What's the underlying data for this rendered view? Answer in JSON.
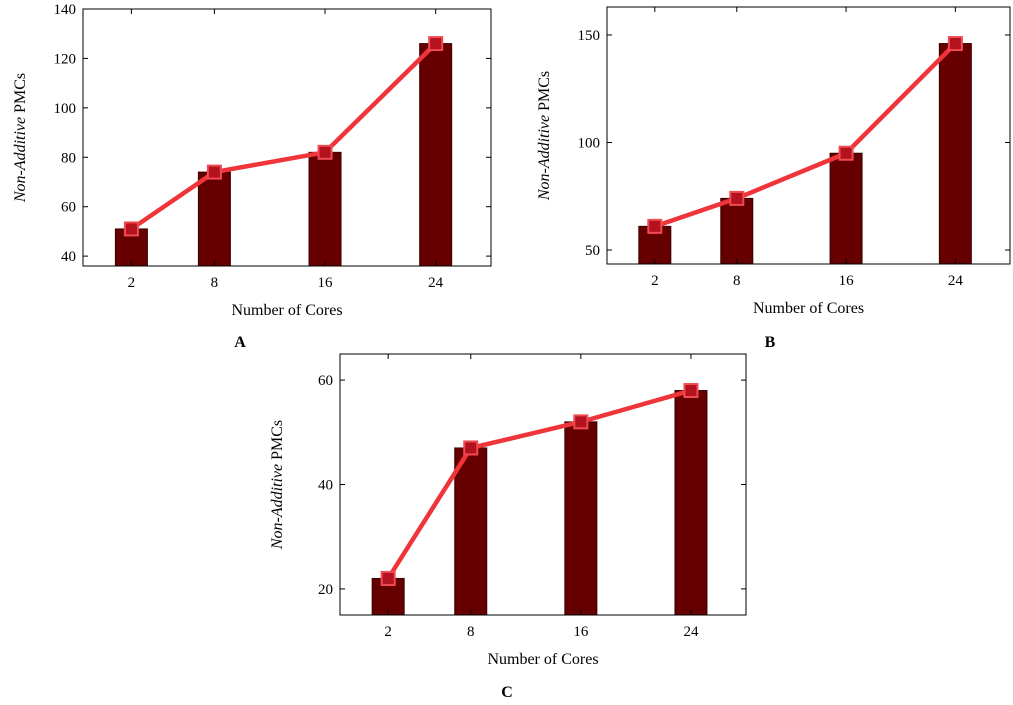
{
  "chart_data": [
    {
      "id": "A",
      "panel_label": "A",
      "type": "bar",
      "overlay": "line",
      "categories": [
        "2",
        "8",
        "16",
        "24"
      ],
      "x": [
        2,
        8,
        16,
        24
      ],
      "values": [
        51,
        74,
        82,
        126
      ],
      "xlabel": "Number of Cores",
      "ylabel_italic": "Non-Additive",
      "ylabel_rest": " PMCs",
      "ylim": [
        36,
        140
      ],
      "yticks": [
        40,
        60,
        80,
        100,
        120,
        140
      ],
      "xlim": [
        -1.5,
        28
      ]
    },
    {
      "id": "B",
      "panel_label": "B",
      "type": "bar",
      "overlay": "line",
      "categories": [
        "2",
        "8",
        "16",
        "24"
      ],
      "x": [
        2,
        8,
        16,
        24
      ],
      "values": [
        61,
        74,
        95,
        146
      ],
      "xlabel": "Number of Cores",
      "ylabel_italic": "Non-Additive",
      "ylabel_rest": " PMCs",
      "ylim": [
        43.5,
        163
      ],
      "yticks": [
        50,
        100,
        150
      ],
      "xlim": [
        -1.5,
        28
      ]
    },
    {
      "id": "C",
      "panel_label": "C",
      "type": "bar",
      "overlay": "line",
      "categories": [
        "2",
        "8",
        "16",
        "24"
      ],
      "x": [
        2,
        8,
        16,
        24
      ],
      "values": [
        22,
        47,
        52,
        58
      ],
      "xlabel": "Number of Cores",
      "ylabel_italic": "Non-Additive",
      "ylabel_rest": " PMCs",
      "ylim": [
        15,
        65
      ],
      "yticks": [
        20,
        40,
        60
      ],
      "xlim": [
        -1.5,
        28
      ]
    }
  ],
  "colors": {
    "bar_fill": "#660000",
    "bar_edge": "#3a0000",
    "line": "#f0353a",
    "marker_fill": "#b3121e",
    "marker_edge": "#f04a52"
  }
}
